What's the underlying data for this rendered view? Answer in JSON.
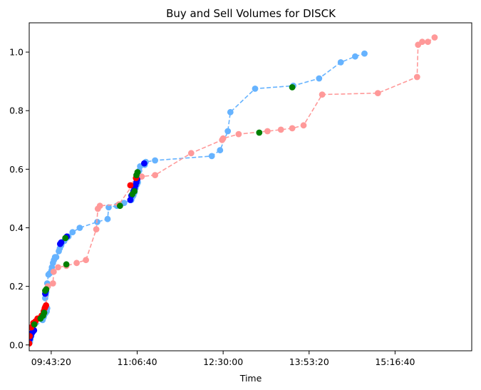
{
  "chart_data": {
    "type": "scatter",
    "title": "Buy and Sell Volumes for DISCK",
    "xlabel": "Time",
    "ylabel": "",
    "x_unit": "time of day",
    "xlim": [
      "09:22:00",
      "16:31:00"
    ],
    "ylim": [
      -0.02,
      1.1
    ],
    "x_ticks": [
      "09:43:20",
      "11:06:40",
      "12:30:00",
      "13:53:20",
      "15:16:40"
    ],
    "y_ticks": [
      0.0,
      0.2,
      0.4,
      0.6,
      0.8,
      1.0
    ],
    "grid": false,
    "legend": "none",
    "series": [
      {
        "line_style": "dashed",
        "color": "#66b3ff",
        "points": [
          [
            "09:22:00",
            0.005
          ],
          [
            "09:22:40",
            0.01
          ],
          [
            "09:23:20",
            0.02
          ],
          [
            "09:24:00",
            0.03
          ],
          [
            "09:24:30",
            0.04
          ],
          [
            "09:25:00",
            0.05
          ],
          [
            "09:25:30",
            0.055
          ],
          [
            "09:35:00",
            0.085
          ],
          [
            "09:36:00",
            0.095
          ],
          [
            "09:37:00",
            0.105
          ],
          [
            "09:38:00",
            0.11
          ],
          [
            "09:39:00",
            0.115
          ],
          [
            "09:39:30",
            0.125
          ],
          [
            "09:37:30",
            0.16
          ],
          [
            "09:38:00",
            0.17
          ],
          [
            "09:38:30",
            0.18
          ],
          [
            "09:39:30",
            0.21
          ],
          [
            "09:40:40",
            0.24
          ],
          [
            "09:42:00",
            0.245
          ],
          [
            "09:43:40",
            0.255
          ],
          [
            "09:44:00",
            0.265
          ],
          [
            "09:45:00",
            0.28
          ],
          [
            "09:46:00",
            0.29
          ],
          [
            "09:47:00",
            0.3
          ],
          [
            "09:48:10",
            0.3
          ],
          [
            "09:50:40",
            0.32
          ],
          [
            "09:51:40",
            0.33
          ],
          [
            "09:53:00",
            0.34
          ],
          [
            "09:54:00",
            0.35
          ],
          [
            "09:56:00",
            0.355
          ],
          [
            "09:58:00",
            0.365
          ],
          [
            "10:00:00",
            0.37
          ],
          [
            "10:04:00",
            0.385
          ],
          [
            "10:11:00",
            0.4
          ],
          [
            "10:28:00",
            0.42
          ],
          [
            "10:38:00",
            0.43
          ],
          [
            "10:39:00",
            0.47
          ],
          [
            "10:47:00",
            0.475
          ],
          [
            "10:54:00",
            0.485
          ],
          [
            "11:01:00",
            0.495
          ],
          [
            "11:02:00",
            0.505
          ],
          [
            "11:03:00",
            0.51
          ],
          [
            "11:04:00",
            0.52
          ],
          [
            "11:05:00",
            0.535
          ],
          [
            "11:06:00",
            0.545
          ],
          [
            "11:06:40",
            0.55
          ],
          [
            "11:07:20",
            0.555
          ],
          [
            "11:08:00",
            0.58
          ],
          [
            "11:08:40",
            0.595
          ],
          [
            "11:09:30",
            0.61
          ],
          [
            "11:14:00",
            0.615
          ],
          [
            "11:15:00",
            0.625
          ],
          [
            "11:24:00",
            0.63
          ],
          [
            "12:19:00",
            0.645
          ],
          [
            "12:27:00",
            0.665
          ],
          [
            "12:34:30",
            0.73
          ],
          [
            "12:37:00",
            0.795
          ],
          [
            "13:01:00",
            0.875
          ],
          [
            "13:38:00",
            0.885
          ],
          [
            "14:03:00",
            0.91
          ],
          [
            "14:24:00",
            0.965
          ],
          [
            "14:38:00",
            0.985
          ],
          [
            "14:47:00",
            0.995
          ]
        ]
      },
      {
        "line_style": "dashed",
        "color": "#ff9999",
        "points": [
          [
            "09:22:00",
            0.005
          ],
          [
            "09:22:30",
            0.03
          ],
          [
            "09:23:00",
            0.05
          ],
          [
            "09:24:00",
            0.06
          ],
          [
            "09:26:00",
            0.07
          ],
          [
            "09:28:00",
            0.08
          ],
          [
            "09:31:00",
            0.09
          ],
          [
            "09:34:00",
            0.1
          ],
          [
            "09:36:30",
            0.11
          ],
          [
            "09:37:30",
            0.13
          ],
          [
            "09:38:20",
            0.135
          ],
          [
            "09:40:00",
            0.2
          ],
          [
            "09:45:00",
            0.21
          ],
          [
            "09:45:40",
            0.25
          ],
          [
            "09:50:00",
            0.265
          ],
          [
            "09:58:00",
            0.27
          ],
          [
            "10:08:00",
            0.28
          ],
          [
            "10:17:00",
            0.29
          ],
          [
            "10:27:00",
            0.395
          ],
          [
            "10:28:30",
            0.465
          ],
          [
            "10:30:30",
            0.475
          ],
          [
            "10:49:00",
            0.48
          ],
          [
            "11:02:00",
            0.545
          ],
          [
            "11:04:00",
            0.55
          ],
          [
            "11:06:00",
            0.565
          ],
          [
            "11:07:30",
            0.57
          ],
          [
            "11:11:00",
            0.575
          ],
          [
            "11:24:00",
            0.58
          ],
          [
            "11:59:00",
            0.655
          ],
          [
            "12:29:00",
            0.7
          ],
          [
            "12:30:00",
            0.705
          ],
          [
            "12:45:00",
            0.72
          ],
          [
            "13:13:00",
            0.73
          ],
          [
            "13:26:00",
            0.735
          ],
          [
            "13:37:00",
            0.74
          ],
          [
            "13:48:00",
            0.75
          ],
          [
            "14:06:00",
            0.855
          ],
          [
            "15:00:00",
            0.86
          ],
          [
            "15:38:00",
            0.915
          ],
          [
            "15:39:00",
            1.025
          ],
          [
            "15:43:00",
            1.035
          ],
          [
            "15:48:30",
            1.035
          ],
          [
            "15:55:00",
            1.05
          ]
        ]
      }
    ],
    "markers": [
      {
        "color": "#0000ff",
        "points": [
          [
            "09:22:30",
            0.02
          ],
          [
            "09:23:30",
            0.03
          ],
          [
            "09:24:30",
            0.04
          ],
          [
            "09:25:30",
            0.045
          ],
          [
            "09:26:40",
            0.05
          ],
          [
            "09:37:30",
            0.175
          ],
          [
            "09:38:10",
            0.185
          ],
          [
            "09:52:00",
            0.345
          ],
          [
            "09:53:00",
            0.35
          ],
          [
            "09:58:30",
            0.37
          ],
          [
            "11:00:00",
            0.495
          ],
          [
            "11:01:00",
            0.51
          ],
          [
            "11:03:00",
            0.525
          ],
          [
            "11:04:00",
            0.535
          ],
          [
            "11:05:00",
            0.545
          ],
          [
            "11:06:00",
            0.555
          ],
          [
            "11:06:40",
            0.565
          ],
          [
            "11:13:30",
            0.62
          ]
        ]
      },
      {
        "color": "#ff0000",
        "points": [
          [
            "09:22:00",
            0.005
          ],
          [
            "09:22:30",
            0.03
          ],
          [
            "09:24:00",
            0.06
          ],
          [
            "09:26:00",
            0.075
          ],
          [
            "09:28:00",
            0.08
          ],
          [
            "09:30:00",
            0.09
          ],
          [
            "09:34:00",
            0.1
          ],
          [
            "09:36:00",
            0.115
          ],
          [
            "09:37:00",
            0.125
          ],
          [
            "09:37:40",
            0.13
          ],
          [
            "09:38:20",
            0.135
          ],
          [
            "11:00:00",
            0.545
          ],
          [
            "11:05:30",
            0.57
          ]
        ]
      },
      {
        "color": "#008000",
        "points": [
          [
            "09:27:00",
            0.07
          ],
          [
            "09:33:00",
            0.09
          ],
          [
            "09:35:30",
            0.1
          ],
          [
            "09:36:30",
            0.11
          ],
          [
            "09:37:30",
            0.185
          ],
          [
            "09:38:30",
            0.19
          ],
          [
            "09:57:00",
            0.365
          ],
          [
            "09:58:00",
            0.275
          ],
          [
            "10:50:00",
            0.475
          ],
          [
            "11:02:00",
            0.515
          ],
          [
            "11:04:00",
            0.525
          ],
          [
            "11:06:00",
            0.58
          ],
          [
            "11:07:00",
            0.59
          ],
          [
            "13:05:00",
            0.725
          ],
          [
            "13:37:00",
            0.88
          ]
        ]
      }
    ]
  }
}
